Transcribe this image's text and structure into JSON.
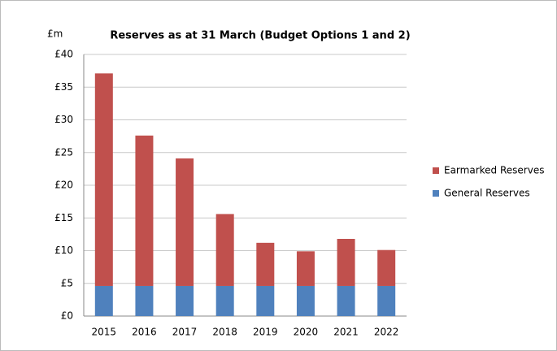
{
  "chart_data": {
    "type": "stacked_bar",
    "title": "Reserves as at 31 March (Budget Options 1 and 2)",
    "y_label": "£m",
    "categories": [
      "2015",
      "2016",
      "2017",
      "2018",
      "2019",
      "2020",
      "2021",
      "2022"
    ],
    "series": [
      {
        "name": "General Reserves",
        "color": "#4f81bd",
        "values": [
          4.6,
          4.6,
          4.6,
          4.6,
          4.6,
          4.6,
          4.6,
          4.6
        ]
      },
      {
        "name": "Earmarked Reserves",
        "color": "#c0504d",
        "values": [
          32.5,
          23.0,
          19.5,
          11.0,
          6.6,
          5.3,
          7.2,
          5.5
        ]
      }
    ],
    "ylim": [
      0,
      40
    ],
    "yticks": [
      {
        "value": 0,
        "label": "£0"
      },
      {
        "value": 5,
        "label": "£5"
      },
      {
        "value": 10,
        "label": "£10"
      },
      {
        "value": 15,
        "label": "£15"
      },
      {
        "value": 20,
        "label": "£20"
      },
      {
        "value": 25,
        "label": "£25"
      },
      {
        "value": 30,
        "label": "£30"
      },
      {
        "value": 35,
        "label": "£35"
      },
      {
        "value": 40,
        "label": "£40"
      }
    ],
    "grid": true,
    "legend": "right"
  }
}
